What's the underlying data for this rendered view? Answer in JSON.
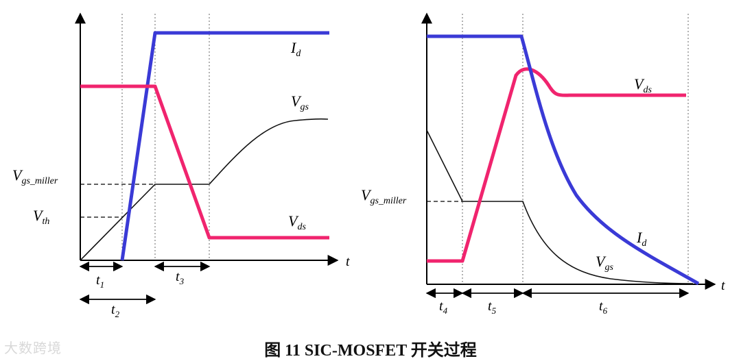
{
  "caption": "图 11 SIC-MOSFET 开关过程",
  "watermark": "大数跨境",
  "left_panel": {
    "id_label": {
      "v": "I",
      "sub": "d"
    },
    "vgs_label": {
      "v": "V",
      "sub": "gs"
    },
    "vds_label": {
      "v": "V",
      "sub": "ds"
    },
    "vgs_miller_label": {
      "v": "V",
      "sub": "gs_miller"
    },
    "vth_label": {
      "v": "V",
      "sub": "th"
    },
    "t_axis": "t",
    "t1": {
      "v": "t",
      "sub": "1"
    },
    "t2": {
      "v": "t",
      "sub": "2"
    },
    "t3": {
      "v": "t",
      "sub": "3"
    }
  },
  "right_panel": {
    "vds_label": {
      "v": "V",
      "sub": "ds"
    },
    "id_label": {
      "v": "I",
      "sub": "d"
    },
    "vgs_label": {
      "v": "V",
      "sub": "gs"
    },
    "vgs_miller_label": {
      "v": "V",
      "sub": "gs_miller"
    },
    "t_axis": "t",
    "t4": {
      "v": "t",
      "sub": "4"
    },
    "t5": {
      "v": "t",
      "sub": "5"
    },
    "t6": {
      "v": "t",
      "sub": "6"
    }
  },
  "colors": {
    "id": "#3a3ad6",
    "vds": "#f0246e",
    "vgs": "#111111"
  }
}
